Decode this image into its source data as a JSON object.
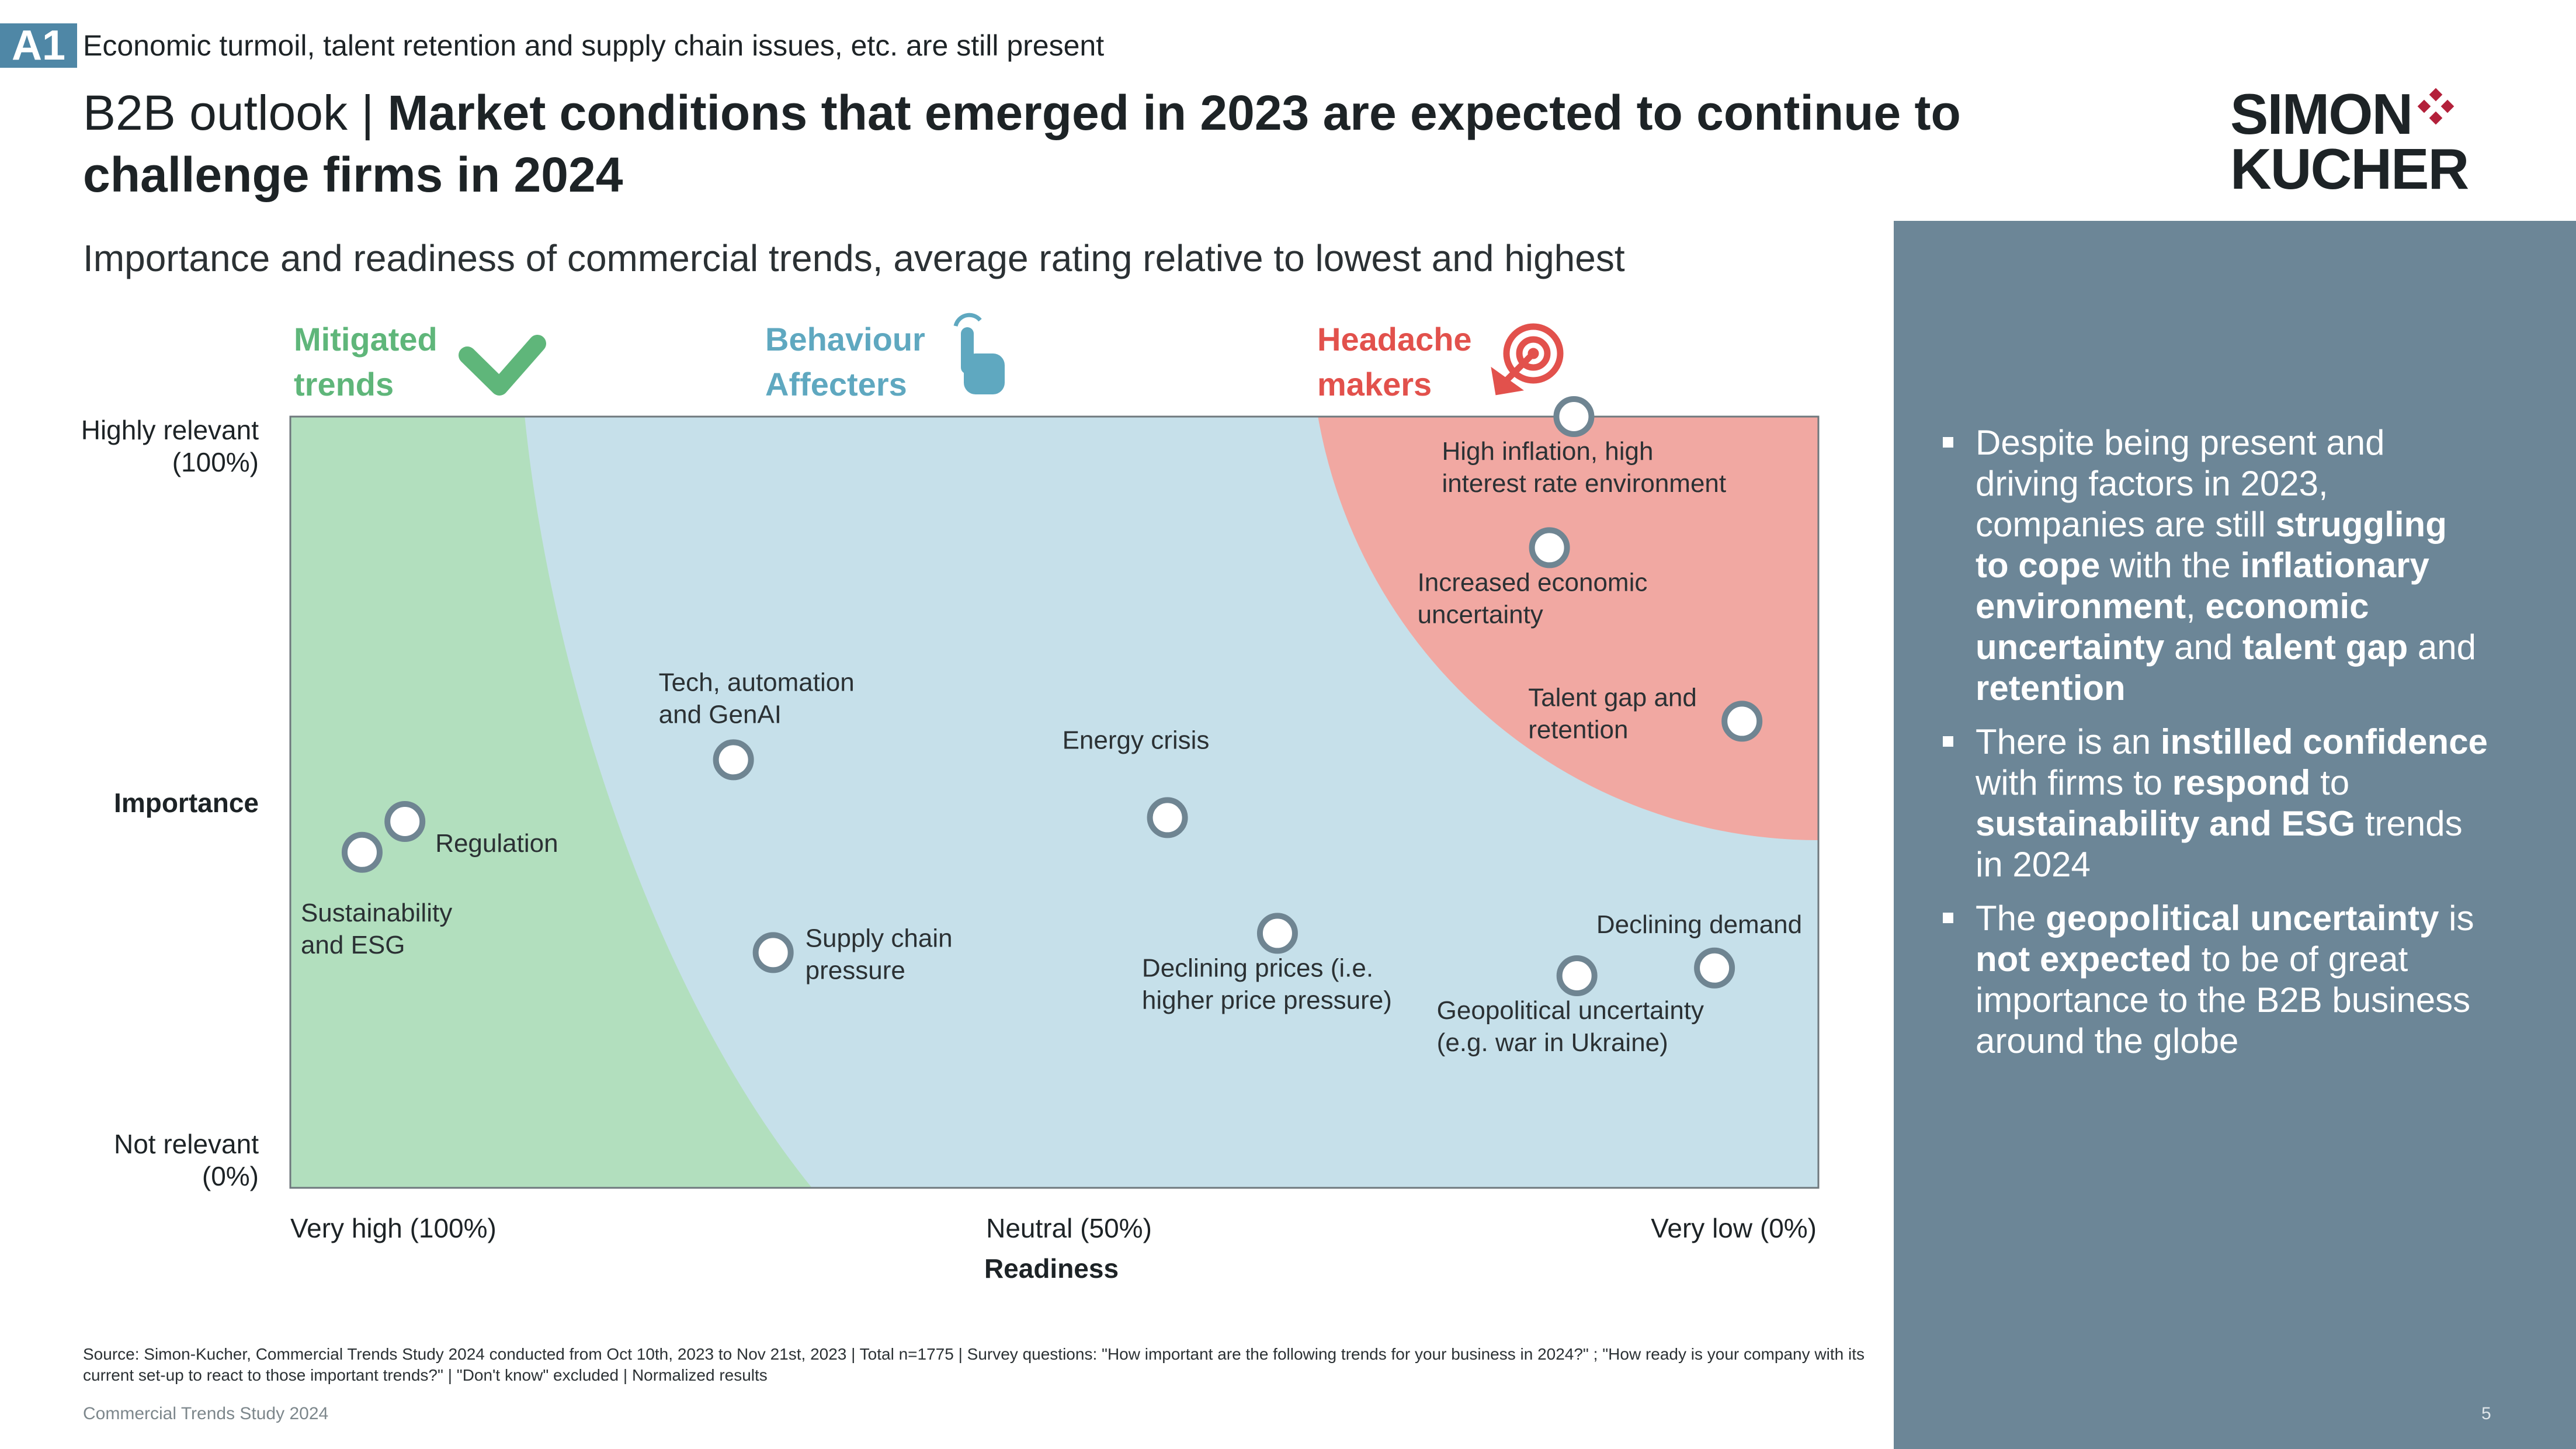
{
  "header": {
    "badge": "A1",
    "tagline": "Economic turmoil, talent retention and supply chain issues, etc. are still present",
    "title_prefix": "B2B outlook",
    "title_separator": "|",
    "title_bold": "Market conditions that emerged in 2023 are expected to continue to challenge firms in 2024",
    "subtitle": "Importance and readiness of commercial trends, average rating relative to lowest and highest"
  },
  "logo": {
    "line1": "SIMON",
    "line2": "KUCHER",
    "mark_color": "#b3203a"
  },
  "chart_data": {
    "type": "scatter",
    "title": "Importance and readiness of commercial trends, average rating relative to lowest and highest",
    "xlabel": "Readiness",
    "ylabel": "Importance",
    "x_direction": "reversed (high readiness on left)",
    "xlim": [
      100,
      0
    ],
    "ylim": [
      0,
      100
    ],
    "x_ticks": [
      "Very high (100%)",
      "Neutral (50%)",
      "Very low (0%)"
    ],
    "y_ticks": [
      "Highly relevant",
      "(100%)",
      "Not relevant",
      "(0%)"
    ],
    "zones": [
      {
        "name": "Mitigated trends",
        "line1": "Mitigated",
        "line2": "trends",
        "color": "#b2dfbe",
        "label_color": "#5fb67a",
        "icon": "check-icon"
      },
      {
        "name": "Behaviour Affecters",
        "line1": "Behaviour",
        "line2": "Affecters",
        "color": "#c6e0ea",
        "label_color": "#5fa8c0",
        "icon": "pointing-hand-icon"
      },
      {
        "name": "Headache makers",
        "line1": "Headache",
        "line2": "makers",
        "color": "#f1a8a2",
        "label_color": "#e2514c",
        "icon": "target-icon"
      }
    ],
    "points": [
      {
        "label": [
          "High inflation, high",
          "interest rate environment"
        ],
        "readiness": 16,
        "importance": 100,
        "label_side": "below-left"
      },
      {
        "label": [
          "Increased economic",
          "uncertainty"
        ],
        "readiness": 17.6,
        "importance": 83,
        "label_side": "below-left"
      },
      {
        "label": [
          "Talent gap and",
          "retention"
        ],
        "readiness": 5,
        "importance": 60.5,
        "label_side": "left"
      },
      {
        "label": [
          "Tech, automation",
          "and GenAI"
        ],
        "readiness": 71,
        "importance": 55.5,
        "label_side": "above-left"
      },
      {
        "label": [
          "Energy crisis"
        ],
        "readiness": 42.6,
        "importance": 48,
        "label_side": "above-left"
      },
      {
        "label": [
          "Regulation"
        ],
        "readiness": 92.5,
        "importance": 47.5,
        "label_side": "below-right"
      },
      {
        "label": [
          "Sustainability",
          "and ESG"
        ],
        "readiness": 95.3,
        "importance": 43.5,
        "label_side": "below"
      },
      {
        "label": [
          "Declining prices (i.e.",
          "higher price pressure)"
        ],
        "readiness": 35.4,
        "importance": 33,
        "label_side": "below-left"
      },
      {
        "label": [
          "Supply chain",
          "pressure"
        ],
        "readiness": 68.4,
        "importance": 30.5,
        "label_side": "right"
      },
      {
        "label": [
          "Declining demand"
        ],
        "readiness": 6.8,
        "importance": 28.5,
        "label_side": "above"
      },
      {
        "label": [
          "Geopolitical uncertainty",
          "(e.g. war in Ukraine)"
        ],
        "readiness": 15.8,
        "importance": 27.5,
        "label_side": "below-left"
      }
    ]
  },
  "panel": {
    "bullets": [
      [
        {
          "t": "Despite being present and driving factors in 2023, companies are still ",
          "b": false
        },
        {
          "t": "struggling to cope",
          "b": true
        },
        {
          "t": " with the ",
          "b": false
        },
        {
          "t": "inflationary environment",
          "b": true
        },
        {
          "t": ", ",
          "b": false
        },
        {
          "t": "economic uncertainty",
          "b": true
        },
        {
          "t": " and ",
          "b": false
        },
        {
          "t": "talent gap",
          "b": true
        },
        {
          "t": " and ",
          "b": false
        },
        {
          "t": "retention",
          "b": true
        }
      ],
      [
        {
          "t": "There is an ",
          "b": false
        },
        {
          "t": "instilled confidence",
          "b": true
        },
        {
          "t": " with firms to ",
          "b": false
        },
        {
          "t": "respond",
          "b": true
        },
        {
          "t": " to ",
          "b": false
        },
        {
          "t": "sustainability and ESG",
          "b": true
        },
        {
          "t": " trends in 2024",
          "b": false
        }
      ],
      [
        {
          "t": "The ",
          "b": false
        },
        {
          "t": "geopolitical uncertainty",
          "b": true
        },
        {
          "t": " is ",
          "b": false
        },
        {
          "t": "not expected",
          "b": true
        },
        {
          "t": " to be of great importance to the B2B business around the globe",
          "b": false
        }
      ]
    ]
  },
  "footer": {
    "source": "Source: Simon-Kucher, Commercial Trends Study 2024 conducted from Oct 10th, 2023 to Nov 21st, 2023 | Total n=1775 | Survey questions: \"How important are the following trends for your business in 2024?\" ; \"How ready is your company with its current set-up to react to those important trends?\" | \"Don't know\" excluded | Normalized results",
    "study_name": "Commercial Trends Study 2024",
    "page_number": "5"
  }
}
